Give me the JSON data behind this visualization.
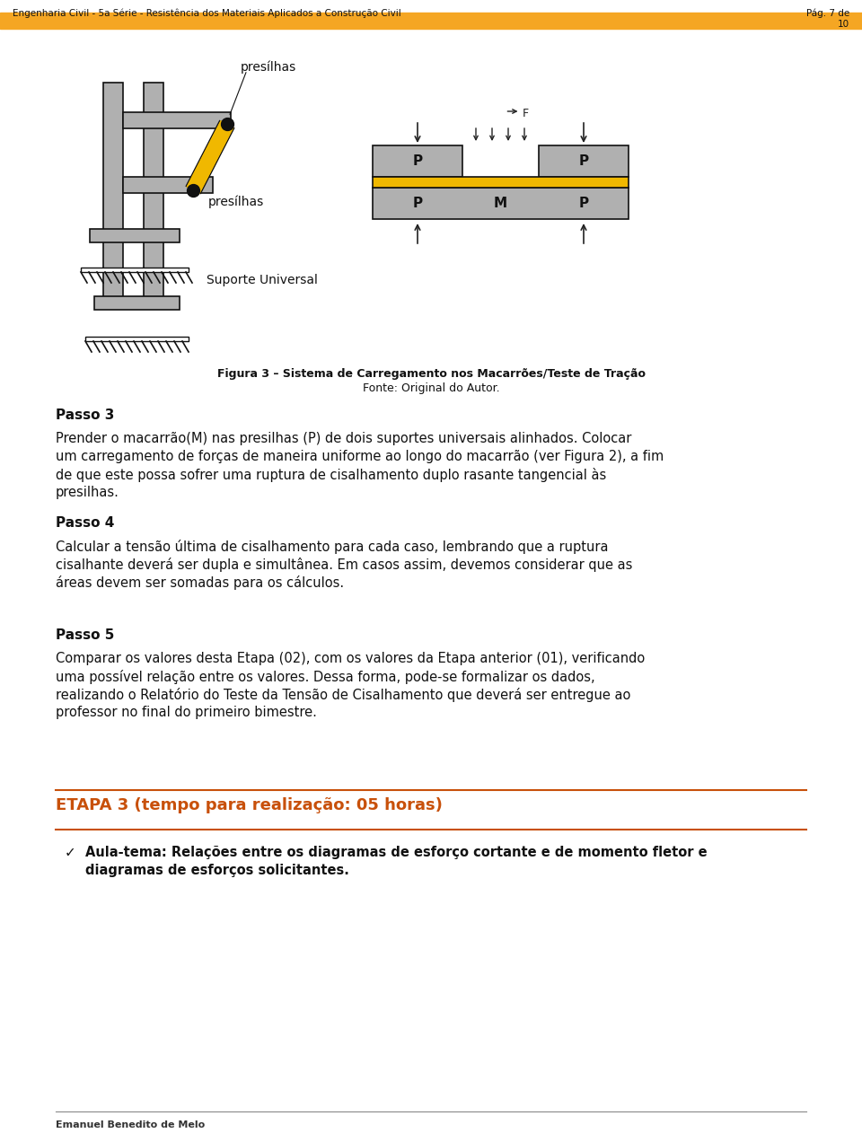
{
  "header_text": "Engenharia Civil - 5a Série - Resistência dos Materiais Aplicados a Construção Civil",
  "header_page": "Pág. 7 de\n10",
  "header_bar_color": "#F5A623",
  "footer_text": "Emanuel Benedito de Melo",
  "footer_line_color": "#888888",
  "fig3_caption_bold": "Figura 3 – Sistema de Carregamento nos Macarrões/Teste de Tração",
  "fig3_caption_normal": "Fonte: Original do Autor.",
  "passo3_title": "Passo 3",
  "passo3_text": "Prender o macarrão(M) nas presilhas (P) de dois suportes universais alinhados. Colocar um carregamento de forças de maneira uniforme ao longo do macarrão (ver Figura 2), a fim de que este possa sofrer uma ruptura de cisalhamento duplo rasante tangencial às presilhas.",
  "passo4_title": "Passo 4",
  "passo4_text": "Calcular a tensão última de cisalhamento para cada caso, lembrando que a ruptura cisalhante deverá ser dupla e simultânea. Em casos assim, devemos considerar que as áreas devem ser somadas para os cálculos.",
  "passo5_title": "Passo 5",
  "passo5_text": "Comparar os valores desta Etapa (02), com os valores da Etapa anterior (01), verificando uma possível relação entre os valores. Dessa forma, pode-se formalizar os dados, realizando o Relatório do Teste da Tensão de Cisalhamento que deverá ser entregue ao professor no final do primeiro bimestre.",
  "etapa3_title": "ETAPA 3 (tempo para realização: 05 horas)",
  "etapa3_color": "#C8500A",
  "etapa3_line_color": "#C8500A",
  "etapa3_bullet_bold": "Aula-tema: Relações entre os diagramas de esforço cortante e de momento fletor e diagramas de esforços solicitantes.",
  "bg_color": "#FFFFFF",
  "text_color": "#000000",
  "gray_color": "#AAAAAA",
  "dark_color": "#333333"
}
